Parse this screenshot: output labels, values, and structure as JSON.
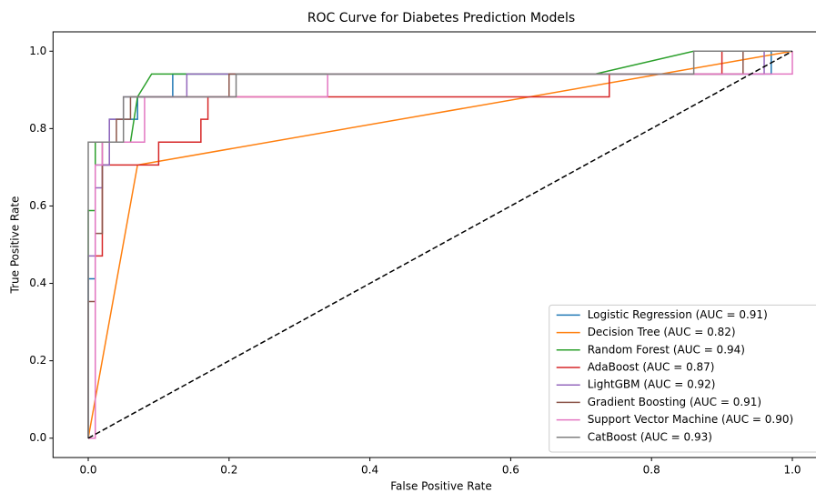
{
  "chart_data": {
    "type": "line",
    "title": "ROC Curve for Diabetes Prediction Models",
    "xlabel": "False Positive Rate",
    "ylabel": "True Positive Rate",
    "xlim": [
      -0.05,
      1.05
    ],
    "ylim": [
      -0.05,
      1.05
    ],
    "xticks": [
      {
        "value": 0,
        "label": "0.0"
      },
      {
        "value": 0.2,
        "label": "0.2"
      },
      {
        "value": 0.4,
        "label": "0.4"
      },
      {
        "value": 0.6,
        "label": "0.6"
      },
      {
        "value": 0.8,
        "label": "0.8"
      },
      {
        "value": 1,
        "label": "1.0"
      }
    ],
    "yticks": [
      {
        "value": 0,
        "label": "0.0"
      },
      {
        "value": 0.2,
        "label": "0.2"
      },
      {
        "value": 0.4,
        "label": "0.4"
      },
      {
        "value": 0.6,
        "label": "0.6"
      },
      {
        "value": 0.8,
        "label": "0.8"
      },
      {
        "value": 1,
        "label": "1.0"
      }
    ],
    "legend": "lower right",
    "grid": false,
    "series": [
      {
        "name": "Logistic Regression (AUC = 0.91)",
        "color": "#1f77b4",
        "x": [
          0,
          0,
          0.01,
          0.01,
          0.03,
          0.03,
          0.07,
          0.07,
          0.12,
          0.12,
          0.97,
          0.97,
          1
        ],
        "values": [
          0,
          0.412,
          0.412,
          0.706,
          0.706,
          0.824,
          0.824,
          0.882,
          0.882,
          0.941,
          0.941,
          1,
          1
        ]
      },
      {
        "name": "Decision Tree (AUC = 0.82)",
        "color": "#ff7f0e",
        "x": [
          0,
          0.07,
          1
        ],
        "values": [
          0,
          0.706,
          1
        ]
      },
      {
        "name": "Random Forest (AUC = 0.94)",
        "color": "#2ca02c",
        "x": [
          0,
          0,
          0.01,
          0.01,
          0.06,
          0.07,
          0.09,
          0.72,
          0.86,
          1
        ],
        "values": [
          0,
          0.588,
          0.588,
          0.765,
          0.765,
          0.882,
          0.941,
          0.941,
          1,
          1
        ]
      },
      {
        "name": "AdaBoost (AUC = 0.87)",
        "color": "#d62728",
        "x": [
          0,
          0.01,
          0.01,
          0.02,
          0.02,
          0.1,
          0.1,
          0.16,
          0.16,
          0.17,
          0.17,
          0.74,
          0.74,
          0.9,
          0.9,
          1
        ],
        "values": [
          0,
          0,
          0.471,
          0.471,
          0.706,
          0.706,
          0.765,
          0.765,
          0.824,
          0.824,
          0.882,
          0.882,
          0.941,
          0.941,
          1,
          1
        ]
      },
      {
        "name": "LightGBM (AUC = 0.92)",
        "color": "#9467bd",
        "x": [
          0,
          0,
          0.01,
          0.01,
          0.02,
          0.02,
          0.03,
          0.03,
          0.05,
          0.05,
          0.14,
          0.14,
          0.96,
          0.96,
          1
        ],
        "values": [
          0,
          0.471,
          0.471,
          0.647,
          0.647,
          0.706,
          0.706,
          0.824,
          0.824,
          0.882,
          0.882,
          0.941,
          0.941,
          1,
          1
        ]
      },
      {
        "name": "Gradient Boosting (AUC = 0.91)",
        "color": "#8c564b",
        "x": [
          0,
          0,
          0.01,
          0.01,
          0.02,
          0.02,
          0.04,
          0.04,
          0.06,
          0.06,
          0.2,
          0.2,
          0.93,
          0.93,
          1
        ],
        "values": [
          0,
          0.353,
          0.353,
          0.529,
          0.529,
          0.765,
          0.765,
          0.824,
          0.824,
          0.882,
          0.882,
          0.941,
          0.941,
          1,
          1
        ]
      },
      {
        "name": "Support Vector Machine (AUC = 0.90)",
        "color": "#e377c2",
        "x": [
          0,
          0.01,
          0.01,
          0.02,
          0.02,
          0.08,
          0.08,
          0.34,
          0.34,
          1,
          1
        ],
        "values": [
          0,
          0,
          0.706,
          0.706,
          0.765,
          0.765,
          0.882,
          0.882,
          0.941,
          0.941,
          1
        ]
      },
      {
        "name": "CatBoost (AUC = 0.93)",
        "color": "#7f7f7f",
        "x": [
          0,
          0,
          0.05,
          0.05,
          0.21,
          0.21,
          0.86,
          0.86,
          1
        ],
        "values": [
          0,
          0.765,
          0.765,
          0.882,
          0.882,
          0.941,
          0.941,
          1,
          1
        ]
      }
    ],
    "reference_line": {
      "x": [
        0,
        1
      ],
      "values": [
        0,
        1
      ],
      "color": "#000000"
    }
  }
}
